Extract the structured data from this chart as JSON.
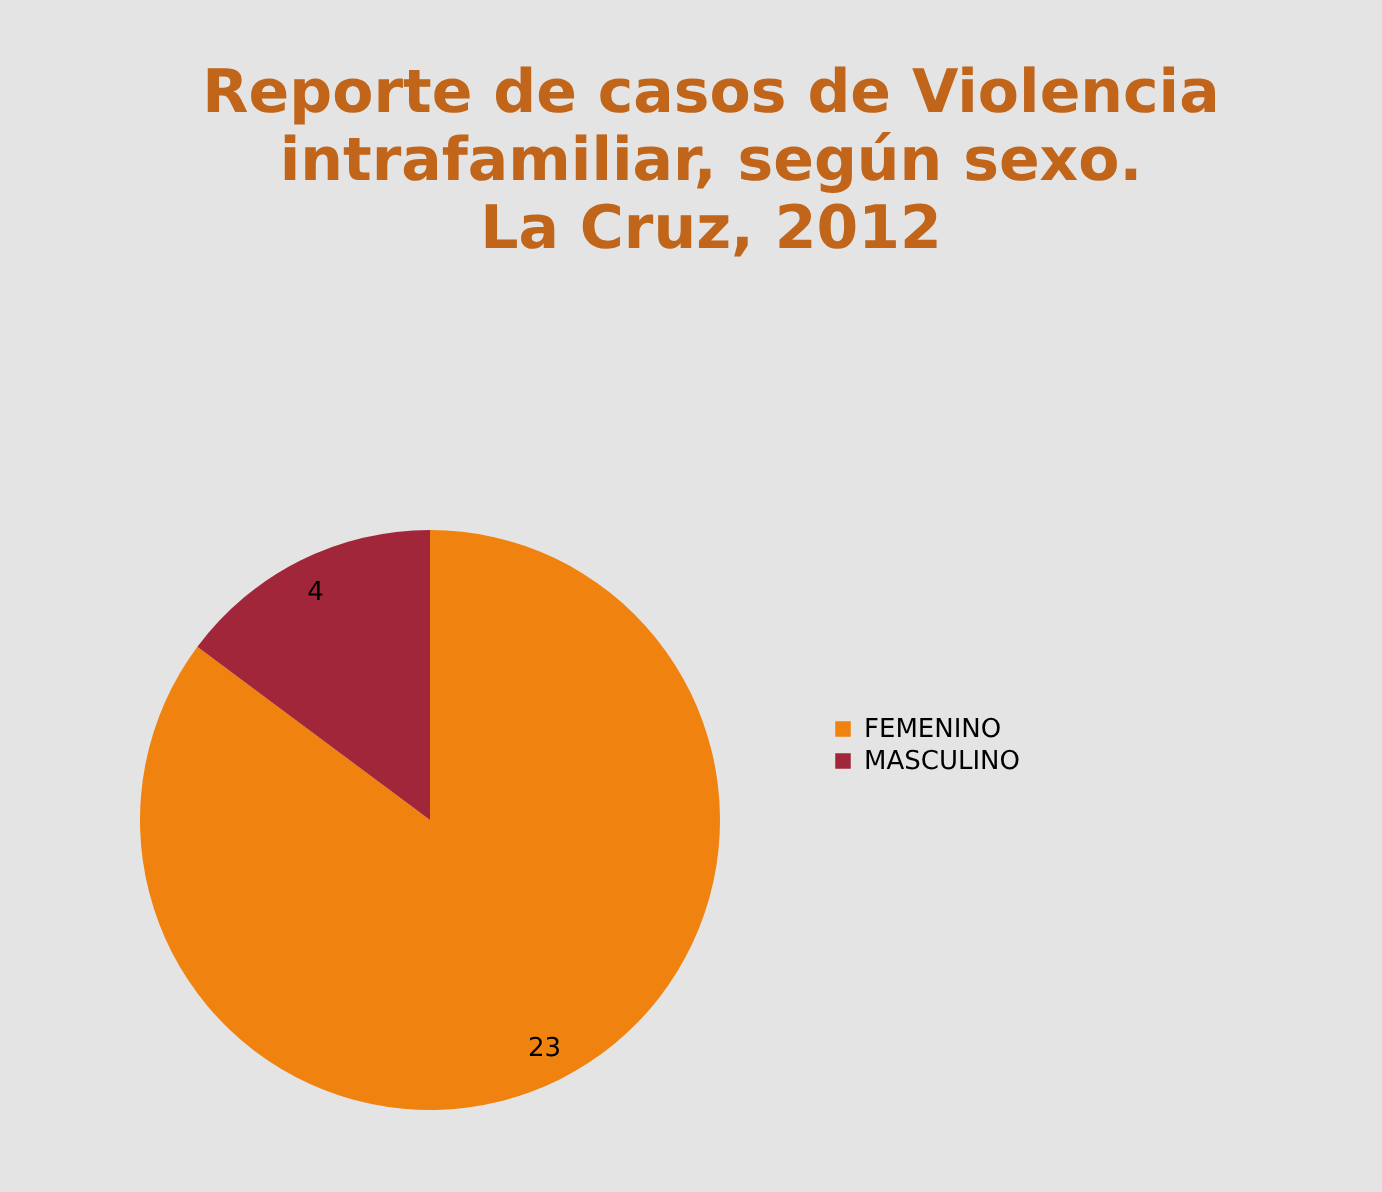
{
  "chart_data": {
    "type": "pie",
    "title": "Reporte de casos de Violencia\nintrafamiliar, según sexo.\nLa Cruz, 2012",
    "categories": [
      "FEMENINO",
      "MASCULINO"
    ],
    "values": [
      23,
      4
    ],
    "colors": [
      "#f0820f",
      "#a2263a"
    ],
    "data_labels": true,
    "legend": "right"
  }
}
